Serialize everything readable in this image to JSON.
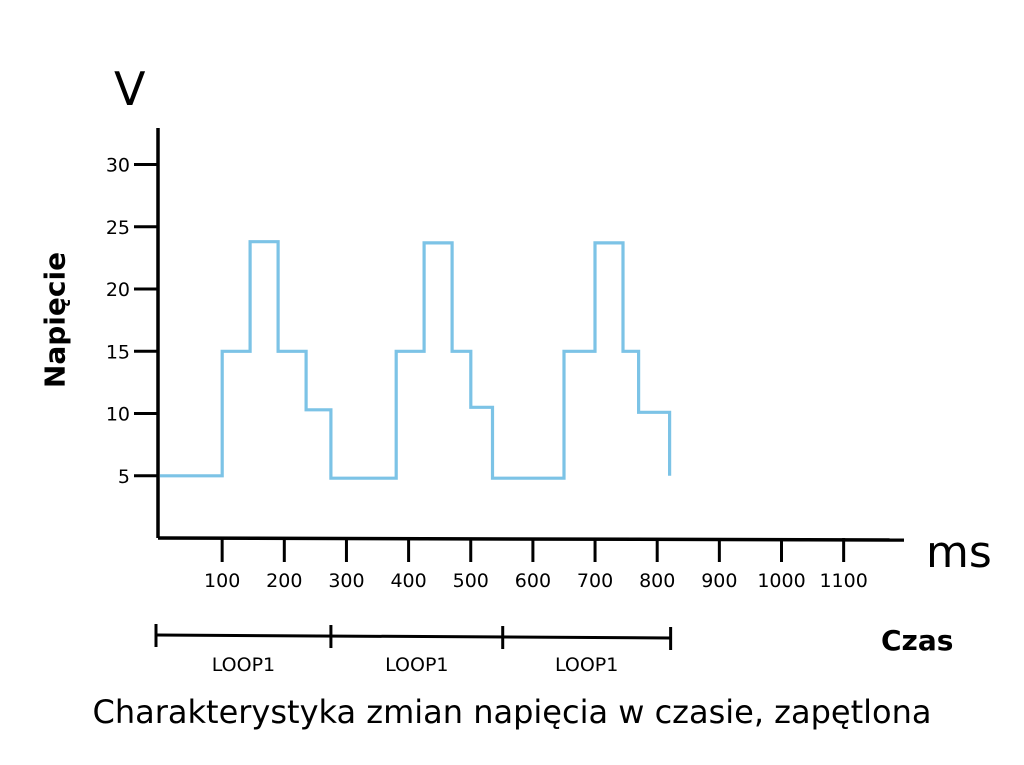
{
  "chart_data": {
    "type": "line",
    "step": true,
    "title": "Charakterystyka zmian napięcia w czasie, zapętlona",
    "ylabel": "Napięcie",
    "xlabel": "Czas",
    "y_unit": "V",
    "x_unit": "ms",
    "xlim": [
      0,
      1200
    ],
    "ylim": [
      0,
      33
    ],
    "x_ticks": [
      100,
      200,
      300,
      400,
      500,
      600,
      700,
      800,
      900,
      1000,
      1100
    ],
    "y_ticks": [
      5,
      10,
      15,
      20,
      25,
      30
    ],
    "grid": false,
    "color": "#7cc3e6",
    "x": [
      0,
      100,
      100,
      145,
      145,
      190,
      190,
      235,
      235,
      275,
      275,
      380,
      380,
      425,
      425,
      470,
      470,
      500,
      500,
      535,
      535,
      650,
      650,
      700,
      700,
      745,
      745,
      770,
      770,
      820,
      820
    ],
    "y": [
      5,
      5,
      15,
      15,
      23.8,
      23.8,
      15,
      15,
      10.3,
      10.3,
      4.8,
      4.8,
      15,
      15,
      23.7,
      23.7,
      15,
      15,
      10.5,
      10.5,
      4.8,
      4.8,
      15,
      15,
      23.7,
      23.7,
      15,
      15,
      10.1,
      10.1,
      5
    ],
    "segments": [
      {
        "label": "LOOP1",
        "start": 0,
        "end": 275
      },
      {
        "label": "LOOP1",
        "start": 275,
        "end": 545
      },
      {
        "label": "LOOP1",
        "start": 545,
        "end": 820
      }
    ]
  }
}
